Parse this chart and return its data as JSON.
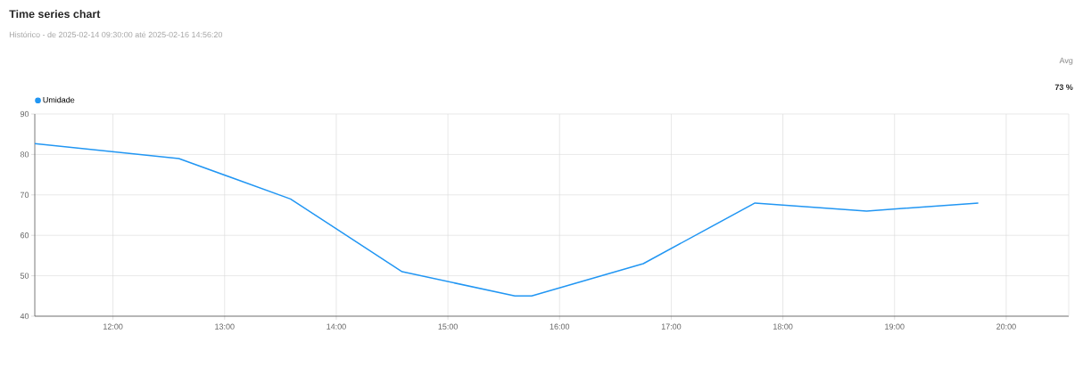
{
  "chart_data": {
    "type": "line",
    "title": "Time series chart",
    "subtitle": "Histórico - de 2025-02-14 09:30:00 até 2025-02-16 14:56:20",
    "annotations": [
      "Avg",
      "73 %"
    ],
    "x": [
      11.3,
      12.59,
      13.59,
      14.59,
      15.6,
      15.75,
      16.75,
      17.75,
      18.75,
      19.75
    ],
    "series": [
      {
        "name": "Umidade",
        "color": "#2196f3",
        "values": [
          82.7,
          79,
          69,
          51,
          45,
          45,
          53,
          68,
          66,
          68
        ]
      }
    ],
    "xlim": [
      11.3,
      20.56
    ],
    "xticks": [
      {
        "value": 12,
        "label": "12:00"
      },
      {
        "value": 13,
        "label": "13:00"
      },
      {
        "value": 14,
        "label": "14:00"
      },
      {
        "value": 15,
        "label": "15:00"
      },
      {
        "value": 16,
        "label": "16:00"
      },
      {
        "value": 17,
        "label": "17:00"
      },
      {
        "value": 18,
        "label": "18:00"
      },
      {
        "value": 19,
        "label": "19:00"
      },
      {
        "value": 20,
        "label": "20:00"
      }
    ],
    "ylim": [
      40,
      90
    ],
    "yticks": [
      40,
      50,
      60,
      70,
      80,
      90
    ],
    "grid": true,
    "legend": "top left",
    "marker": "none",
    "line_style": "solid"
  }
}
